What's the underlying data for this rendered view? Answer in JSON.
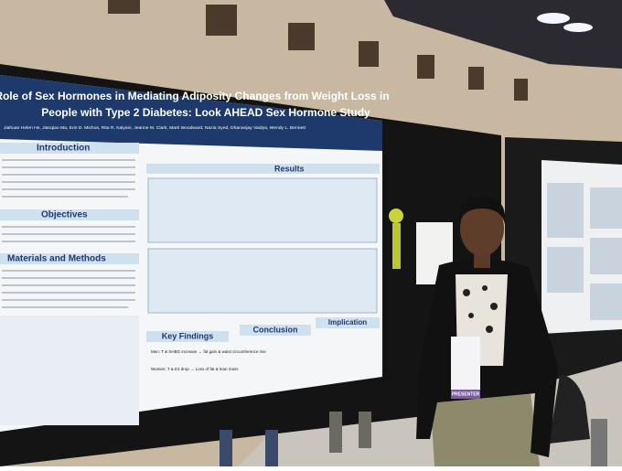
{
  "poster": {
    "title": [
      "Role of Sex Hormones in Mediating Adiposity Changes from Weight Loss in",
      "People with Type 2 Diabetes:  Look AHEAD Sex Hormone Study"
    ],
    "authors": "Jiahuan Helen He, Jianqiao Ma, Erin D. Michos, Rita R. Kalyani, Jeanne M. Clark, Mark Woodward, Nazia Syed, Dhananjay Vaidya, Wendy L. Bennett",
    "sections": {
      "introduction": "Introduction",
      "objectives": "Objectives",
      "methods": "Materials and Methods",
      "results": "Results",
      "key_findings": "Key Findings",
      "conclusion": "Conclusion",
      "implication": "Implication"
    },
    "key_findings": [
      "Men: T & SHBG increase → fat gain & waist circumference rise",
      "Women: T & E2 drop → Loss of fat & lean mass"
    ]
  },
  "badge": "PRESENTER"
}
